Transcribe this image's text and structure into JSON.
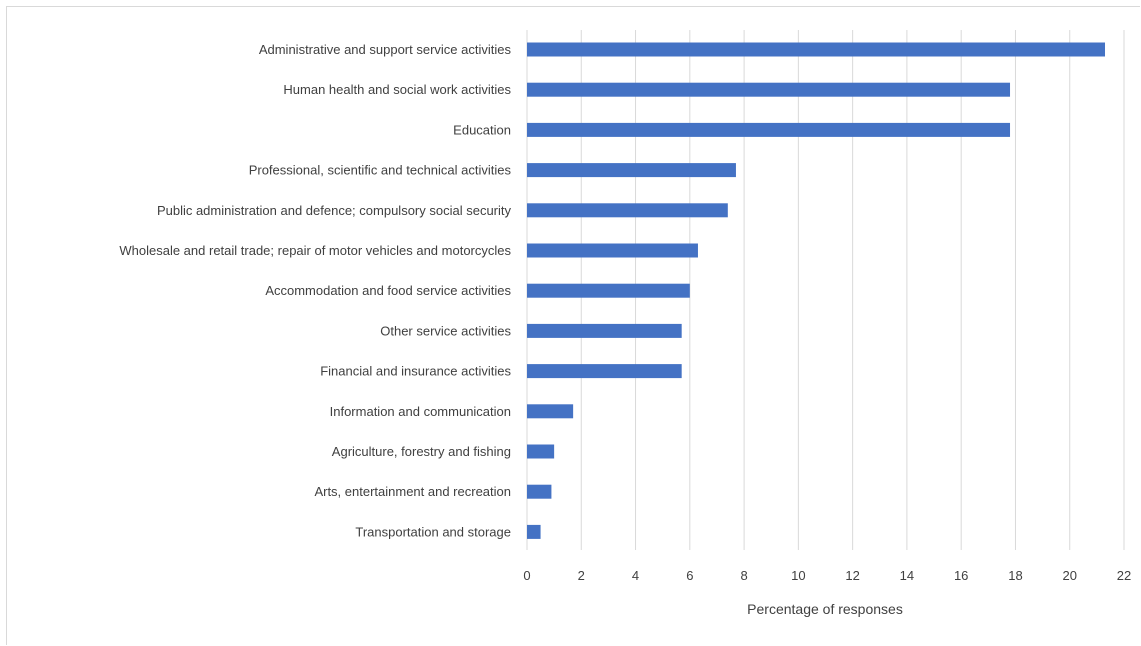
{
  "chart_data": {
    "type": "bar",
    "orientation": "horizontal",
    "title": "",
    "xlabel": "Percentage of responses",
    "ylabel": "",
    "xlim": [
      0,
      22
    ],
    "xticks": [
      0,
      2,
      4,
      6,
      8,
      10,
      12,
      14,
      16,
      18,
      20,
      22
    ],
    "grid": "vertical",
    "bar_color": "#4472c4",
    "gridline_color": "#d9d9d9",
    "categories": [
      "Administrative and support service activities",
      "Human health and social work activities",
      "Education",
      "Professional, scientific and technical activities",
      "Public administration and defence; compulsory social security",
      "Wholesale and retail trade; repair of motor vehicles and motorcycles",
      "Accommodation and food service activities",
      "Other service activities",
      "Financial and insurance activities",
      "Information and communication",
      "Agriculture, forestry and fishing",
      "Arts, entertainment and recreation",
      "Transportation and storage"
    ],
    "values": [
      21.3,
      17.8,
      17.8,
      7.7,
      7.4,
      6.3,
      6.0,
      5.7,
      5.7,
      1.7,
      1.0,
      0.9,
      0.5
    ]
  }
}
